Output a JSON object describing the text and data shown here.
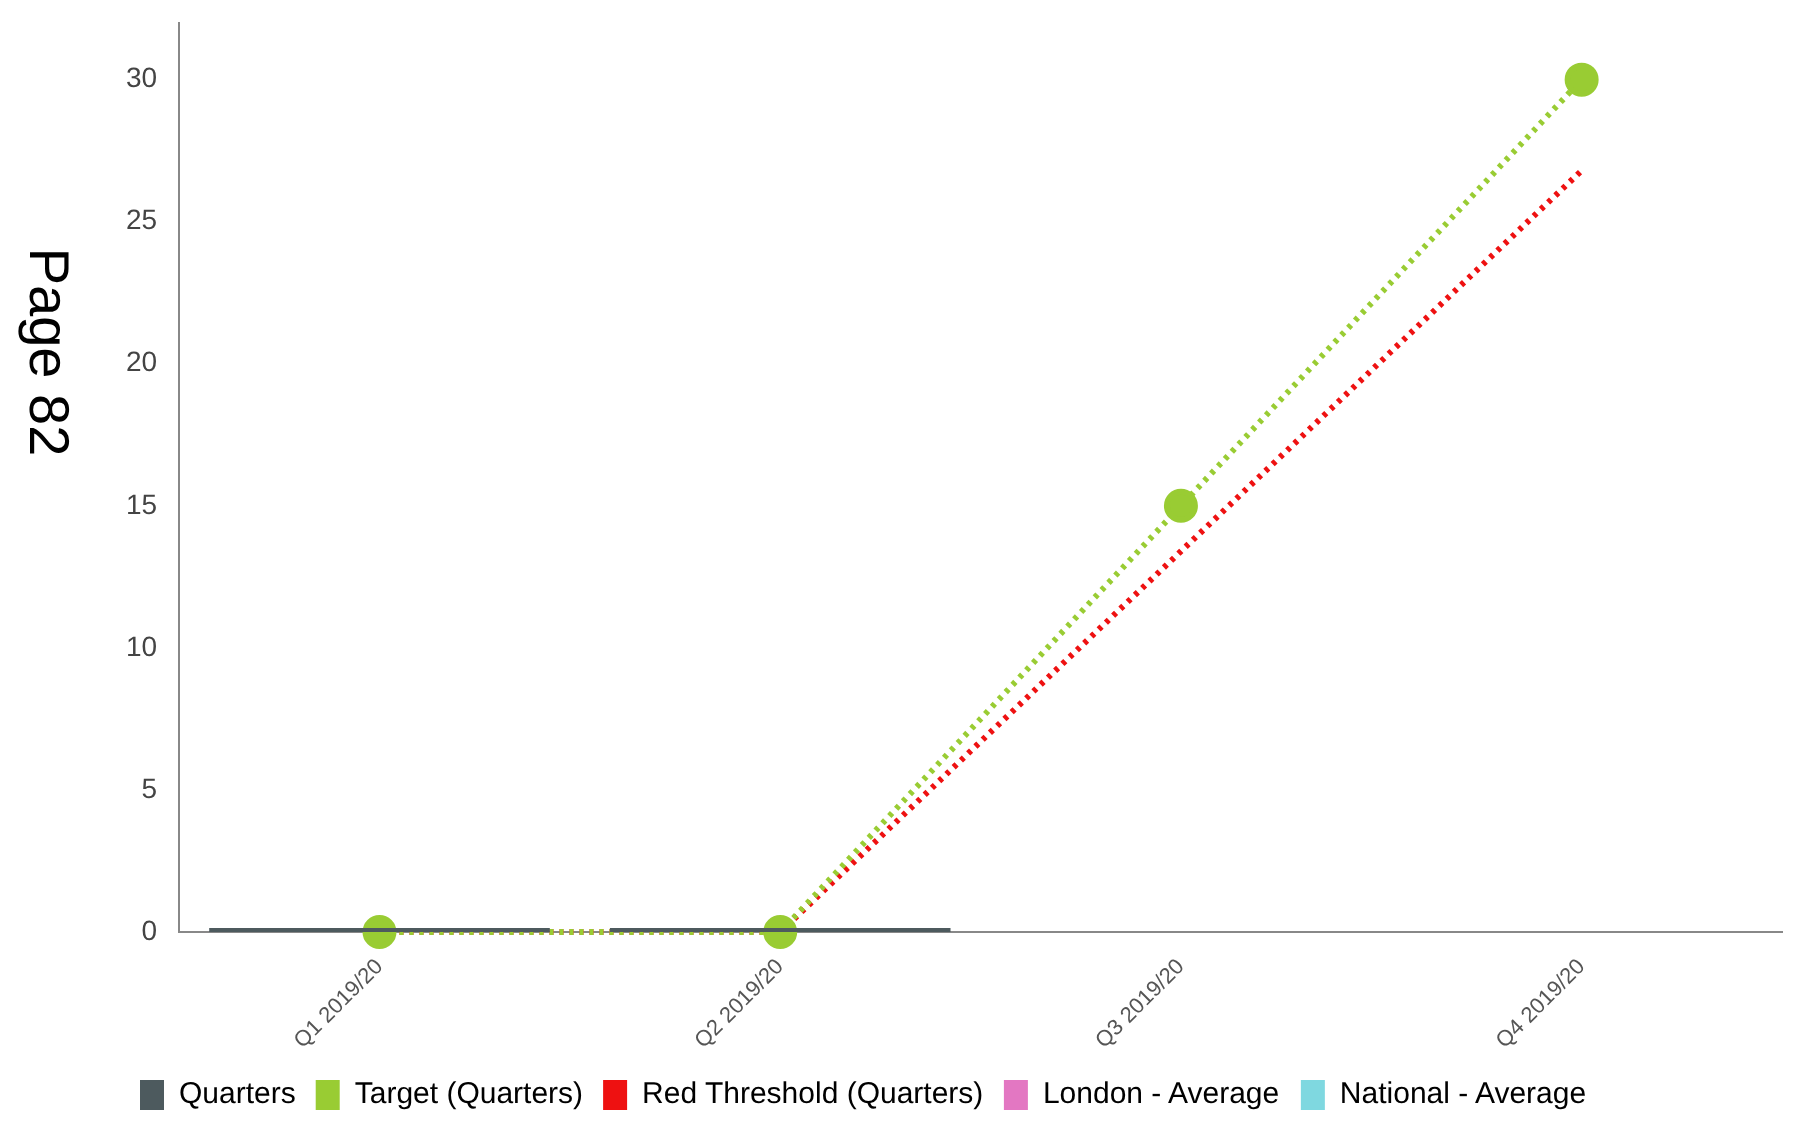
{
  "chart_data": {
    "type": "line",
    "categories": [
      "Q1 2019/20",
      "Q2 2019/20",
      "Q3 2019/20",
      "Q4 2019/20"
    ],
    "series": [
      {
        "name": "Quarters",
        "type": "bar",
        "color": "#4d5a5e",
        "values": [
          0,
          0,
          null,
          null
        ]
      },
      {
        "name": "Target (Quarters)",
        "color": "#99cc33",
        "marker": "circle",
        "line_style": "dotted",
        "values": [
          0,
          0,
          15,
          30
        ]
      },
      {
        "name": "Red Threshold (Quarters)",
        "color": "#ee1111",
        "marker": "none",
        "line_style": "dotted",
        "values": [
          0,
          0,
          13.4,
          26.8
        ]
      },
      {
        "name": "London - Average",
        "color": "#e377c2",
        "marker": "none",
        "line_style": "solid",
        "values": [
          null,
          null,
          null,
          null
        ]
      },
      {
        "name": "National - Average",
        "color": "#7fd8e0",
        "marker": "none",
        "line_style": "solid",
        "values": [
          null,
          null,
          null,
          null
        ]
      }
    ],
    "ylim": [
      0,
      32
    ],
    "yticks": [
      0,
      5,
      10,
      15,
      20,
      25,
      30
    ],
    "grid": false,
    "legend": "bottom left",
    "annotations": [
      "Page 82"
    ]
  }
}
